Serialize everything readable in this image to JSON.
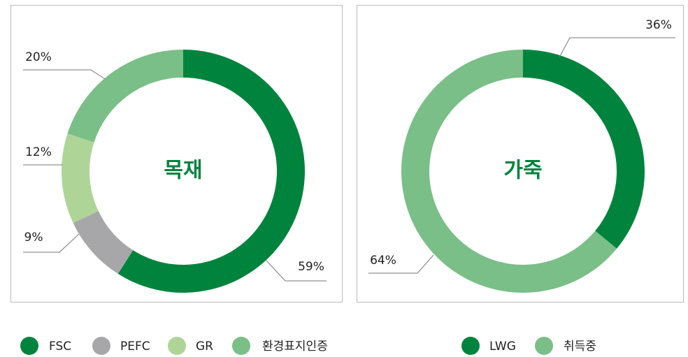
{
  "chart_data": [
    {
      "type": "donut",
      "title": "목재",
      "categories": [
        "FSC",
        "PEFC",
        "GR",
        "환경표지인증"
      ],
      "values": [
        59,
        9,
        12,
        20
      ],
      "value_labels": [
        "59%",
        "9%",
        "12%",
        "20%"
      ],
      "colors": [
        "#00843d",
        "#a7a7a9",
        "#aed597",
        "#79bf87"
      ]
    },
    {
      "type": "donut",
      "title": "가죽",
      "categories": [
        "LWG",
        "취득중"
      ],
      "values": [
        36,
        64
      ],
      "value_labels": [
        "36%",
        "64%"
      ],
      "colors": [
        "#00843d",
        "#79bf87"
      ]
    }
  ]
}
